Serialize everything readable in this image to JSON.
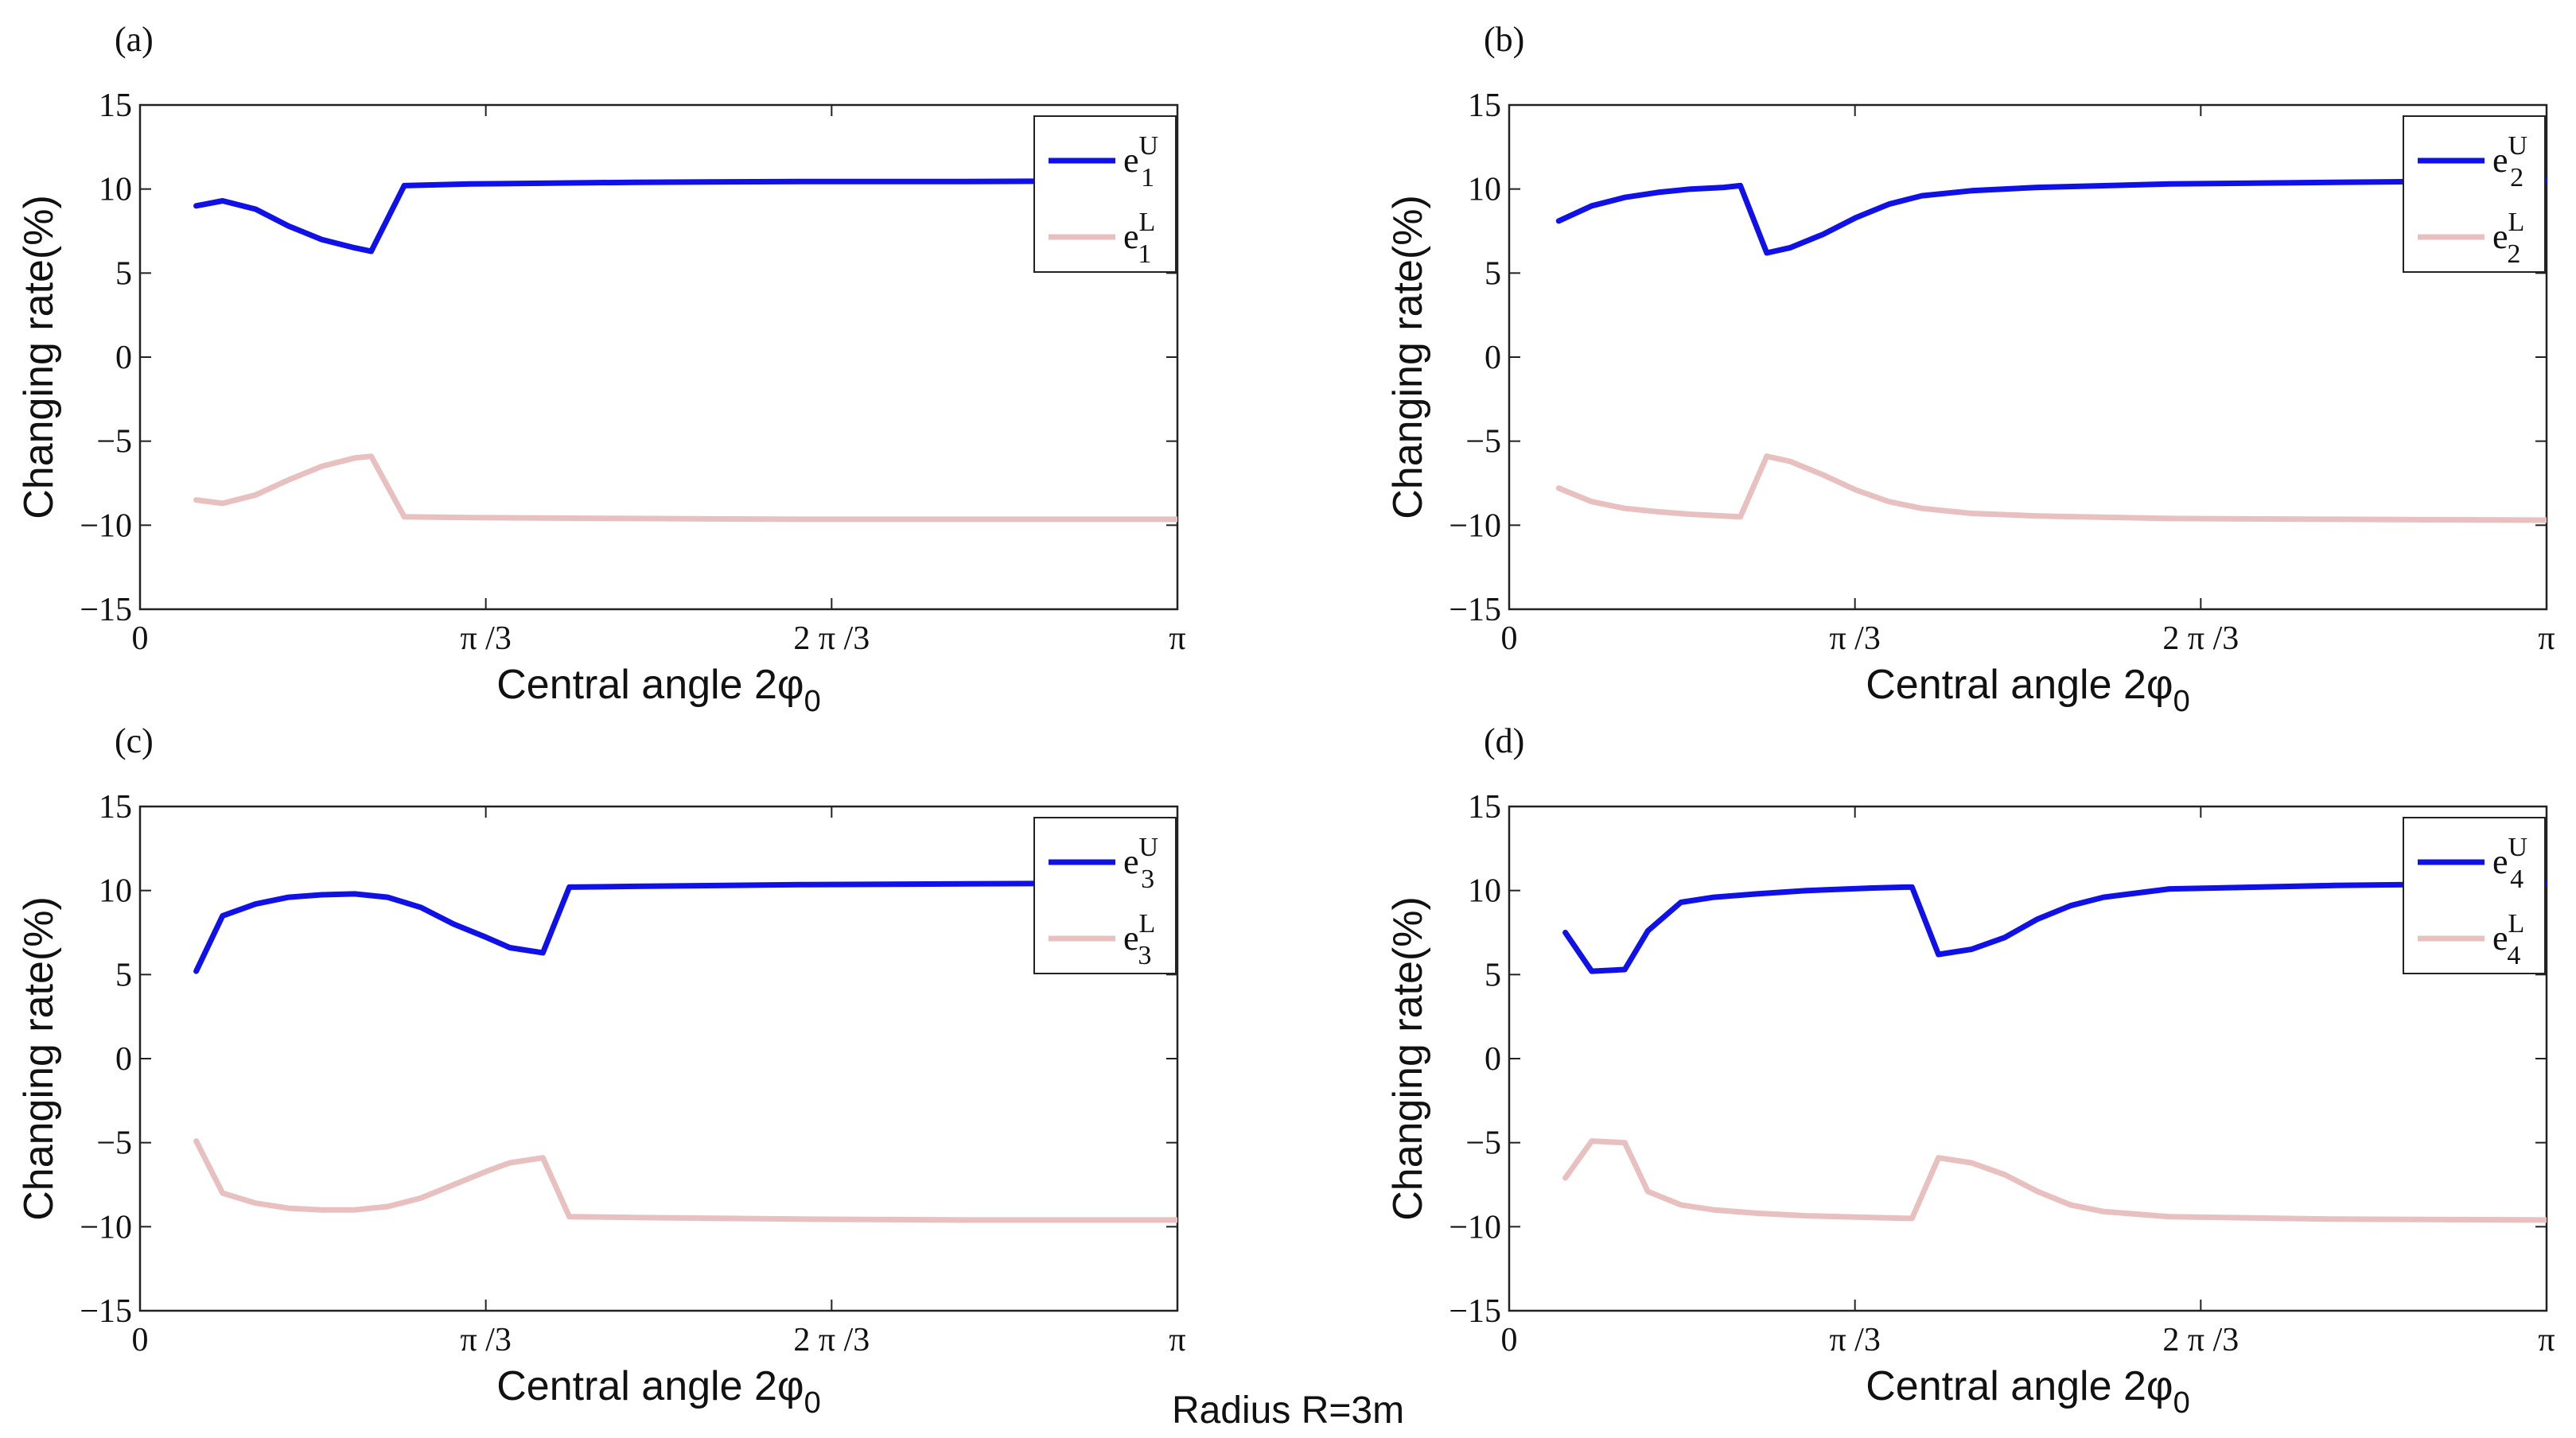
{
  "figure": {
    "footer": "Radius R=3m",
    "colors": {
      "upper": "#1010e8",
      "lower": "#e8c0c0",
      "axis": "#222222"
    }
  },
  "chart_data": [
    {
      "type": "line",
      "panel": "(a)",
      "xlabel_main": "Central angle 2φ",
      "xlabel_sub": "0",
      "ylabel": "Changing rate(%)",
      "xlim": [
        0,
        3.14159
      ],
      "ylim": [
        -15,
        15
      ],
      "yticks": [
        "15",
        "10",
        "5",
        "0",
        "−5",
        "−10",
        "−15"
      ],
      "ytick_values": [
        15,
        10,
        5,
        0,
        -5,
        -10,
        -15
      ],
      "xticks": [
        "0",
        "π /3",
        "2 π /3",
        "π"
      ],
      "xtick_values": [
        0,
        1.0472,
        2.0944,
        3.14159
      ],
      "legend_position": "top-right",
      "series": [
        {
          "name": "e",
          "sup": "U",
          "sub": "1",
          "color_key": "upper",
          "x": [
            0.17,
            0.25,
            0.35,
            0.45,
            0.55,
            0.65,
            0.7,
            0.8,
            1.0,
            1.5,
            2.0,
            2.5,
            3.14
          ],
          "values": [
            9.0,
            9.3,
            8.8,
            7.8,
            7.0,
            6.5,
            6.3,
            10.2,
            10.3,
            10.4,
            10.45,
            10.45,
            10.5
          ]
        },
        {
          "name": "e",
          "sup": "L",
          "sub": "1",
          "color_key": "lower",
          "x": [
            0.17,
            0.25,
            0.35,
            0.45,
            0.55,
            0.65,
            0.7,
            0.8,
            1.0,
            1.5,
            2.0,
            2.5,
            3.14
          ],
          "values": [
            -8.5,
            -8.7,
            -8.2,
            -7.3,
            -6.5,
            -6.0,
            -5.9,
            -9.5,
            -9.55,
            -9.6,
            -9.65,
            -9.65,
            -9.65
          ]
        }
      ]
    },
    {
      "type": "line",
      "panel": "(b)",
      "xlabel_main": "Central angle 2φ",
      "xlabel_sub": "0",
      "ylabel": "Changing rate(%)",
      "xlim": [
        0,
        3.14159
      ],
      "ylim": [
        -15,
        15
      ],
      "yticks": [
        "15",
        "10",
        "5",
        "0",
        "−5",
        "−10",
        "−15"
      ],
      "ytick_values": [
        15,
        10,
        5,
        0,
        -5,
        -10,
        -15
      ],
      "xticks": [
        "0",
        "π /3",
        "2 π /3",
        "π"
      ],
      "xtick_values": [
        0,
        1.0472,
        2.0944,
        3.14159
      ],
      "legend_position": "top-right",
      "series": [
        {
          "name": "e",
          "sup": "U",
          "sub": "2",
          "color_key": "upper",
          "x": [
            0.15,
            0.25,
            0.35,
            0.45,
            0.55,
            0.65,
            0.7,
            0.78,
            0.85,
            0.95,
            1.05,
            1.15,
            1.25,
            1.4,
            1.6,
            2.0,
            2.5,
            3.14
          ],
          "values": [
            8.1,
            9.0,
            9.5,
            9.8,
            10.0,
            10.1,
            10.2,
            6.2,
            6.5,
            7.3,
            8.3,
            9.1,
            9.6,
            9.9,
            10.1,
            10.3,
            10.4,
            10.5
          ]
        },
        {
          "name": "e",
          "sup": "L",
          "sub": "2",
          "color_key": "lower",
          "x": [
            0.15,
            0.25,
            0.35,
            0.45,
            0.55,
            0.65,
            0.7,
            0.78,
            0.85,
            0.95,
            1.05,
            1.15,
            1.25,
            1.4,
            1.6,
            2.0,
            2.5,
            3.14
          ],
          "values": [
            -7.8,
            -8.6,
            -9.0,
            -9.2,
            -9.35,
            -9.45,
            -9.5,
            -5.9,
            -6.2,
            -7.0,
            -7.9,
            -8.6,
            -9.0,
            -9.3,
            -9.45,
            -9.6,
            -9.65,
            -9.7
          ]
        }
      ]
    },
    {
      "type": "line",
      "panel": "(c)",
      "xlabel_main": "Central angle 2φ",
      "xlabel_sub": "0",
      "ylabel": "Changing rate(%)",
      "xlim": [
        0,
        3.14159
      ],
      "ylim": [
        -15,
        15
      ],
      "yticks": [
        "15",
        "10",
        "5",
        "0",
        "−5",
        "−10",
        "−15"
      ],
      "ytick_values": [
        15,
        10,
        5,
        0,
        -5,
        -10,
        -15
      ],
      "xticks": [
        "0",
        "π /3",
        "2 π /3",
        "π"
      ],
      "xtick_values": [
        0,
        1.0472,
        2.0944,
        3.14159
      ],
      "legend_position": "top-right",
      "series": [
        {
          "name": "e",
          "sup": "U",
          "sub": "3",
          "color_key": "upper",
          "x": [
            0.17,
            0.25,
            0.35,
            0.45,
            0.55,
            0.65,
            0.75,
            0.85,
            0.95,
            1.05,
            1.12,
            1.22,
            1.3,
            1.5,
            2.0,
            2.5,
            3.14
          ],
          "values": [
            5.2,
            8.5,
            9.2,
            9.6,
            9.75,
            9.8,
            9.6,
            9.0,
            8.0,
            7.2,
            6.6,
            6.3,
            10.2,
            10.25,
            10.35,
            10.4,
            10.45
          ]
        },
        {
          "name": "e",
          "sup": "L",
          "sub": "3",
          "color_key": "lower",
          "x": [
            0.17,
            0.25,
            0.35,
            0.45,
            0.55,
            0.65,
            0.75,
            0.85,
            0.95,
            1.05,
            1.12,
            1.22,
            1.3,
            1.5,
            2.0,
            2.5,
            3.14
          ],
          "values": [
            -4.9,
            -8.0,
            -8.6,
            -8.9,
            -9.0,
            -9.0,
            -8.8,
            -8.3,
            -7.5,
            -6.7,
            -6.2,
            -5.9,
            -9.4,
            -9.45,
            -9.55,
            -9.6,
            -9.6
          ]
        }
      ]
    },
    {
      "type": "line",
      "panel": "(d)",
      "xlabel_main": "Central angle 2φ",
      "xlabel_sub": "0",
      "ylabel": "Changing rate(%)",
      "xlim": [
        0,
        3.14159
      ],
      "ylim": [
        -15,
        15
      ],
      "yticks": [
        "15",
        "10",
        "5",
        "0",
        "−5",
        "−10",
        "−15"
      ],
      "ytick_values": [
        15,
        10,
        5,
        0,
        -5,
        -10,
        -15
      ],
      "xticks": [
        "0",
        "π /3",
        "2 π /3",
        "π"
      ],
      "xtick_values": [
        0,
        1.0472,
        2.0944,
        3.14159
      ],
      "legend_position": "top-right",
      "series": [
        {
          "name": "e",
          "sup": "U",
          "sub": "4",
          "color_key": "upper",
          "x": [
            0.17,
            0.25,
            0.35,
            0.42,
            0.52,
            0.62,
            0.75,
            0.9,
            1.1,
            1.2,
            1.22,
            1.3,
            1.4,
            1.5,
            1.6,
            1.7,
            1.8,
            2.0,
            2.5,
            3.14
          ],
          "values": [
            7.5,
            5.2,
            5.3,
            7.6,
            9.3,
            9.6,
            9.8,
            10.0,
            10.15,
            10.2,
            10.2,
            6.2,
            6.5,
            7.2,
            8.3,
            9.1,
            9.6,
            10.1,
            10.3,
            10.45
          ]
        },
        {
          "name": "e",
          "sup": "L",
          "sub": "4",
          "color_key": "lower",
          "x": [
            0.17,
            0.25,
            0.35,
            0.42,
            0.52,
            0.62,
            0.75,
            0.9,
            1.1,
            1.2,
            1.22,
            1.3,
            1.4,
            1.5,
            1.6,
            1.7,
            1.8,
            2.0,
            2.5,
            3.14
          ],
          "values": [
            -7.1,
            -4.9,
            -5.0,
            -7.9,
            -8.7,
            -9.0,
            -9.2,
            -9.35,
            -9.45,
            -9.5,
            -9.5,
            -5.9,
            -6.2,
            -6.9,
            -7.9,
            -8.7,
            -9.1,
            -9.4,
            -9.55,
            -9.6
          ]
        }
      ]
    }
  ]
}
